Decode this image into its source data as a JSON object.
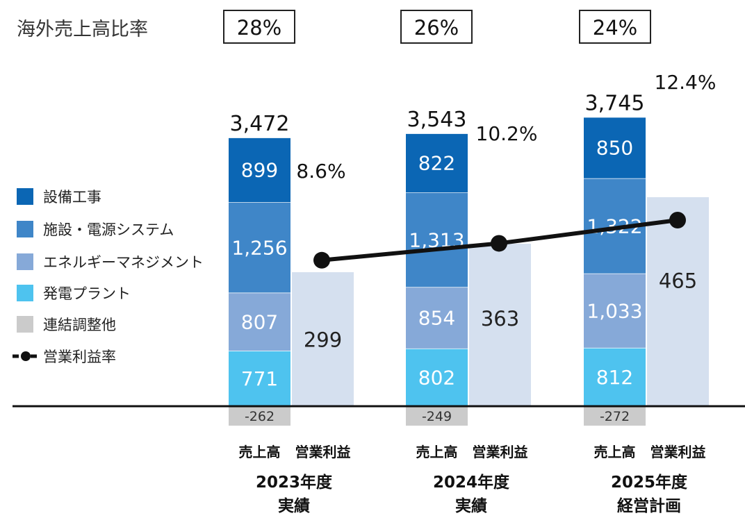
{
  "chart_data": {
    "type": "bar",
    "title": "",
    "overseas_label": "海外売上高比率",
    "overseas_ratios": [
      "28%",
      "26%",
      "24%"
    ],
    "categories": [
      "2023年度",
      "2024年度",
      "2025年度"
    ],
    "category_notes": [
      "実績",
      "実績",
      "経営計画"
    ],
    "bar_labels": {
      "sales": "売上高",
      "profit": "営業利益"
    },
    "sales_series": [
      {
        "name": "設備工事",
        "values": [
          899,
          822,
          850
        ],
        "labels": [
          "899",
          "822",
          "850"
        ],
        "color": "#0b66b4"
      },
      {
        "name": "施設・電源システム",
        "values": [
          1256,
          1313,
          1322
        ],
        "labels": [
          "1,256",
          "1,313",
          "1,322"
        ],
        "color": "#3f86c8"
      },
      {
        "name": "エネルギーマネジメント",
        "values": [
          807,
          854,
          1033
        ],
        "labels": [
          "807",
          "854",
          "1,033"
        ],
        "color": "#86a9d8"
      },
      {
        "name": "発電プラント",
        "values": [
          771,
          802,
          812
        ],
        "labels": [
          "771",
          "802",
          "812"
        ],
        "color": "#4ec3ef"
      },
      {
        "name": "連結調整他",
        "values": [
          -262,
          -249,
          -272
        ],
        "labels": [
          "-262",
          "-249",
          "-272"
        ],
        "color": "#cbcbcb"
      }
    ],
    "sales_totals": [
      3472,
      3543,
      3745
    ],
    "sales_total_labels": [
      "3,472",
      "3,543",
      "3,745"
    ],
    "operating_profit": {
      "values": [
        299,
        363,
        465
      ],
      "labels": [
        "299",
        "363",
        "465"
      ],
      "color": "#d5e0ef"
    },
    "operating_margin": {
      "name": "営業利益率",
      "values": [
        8.6,
        10.2,
        12.4
      ],
      "labels": [
        "8.6%",
        "10.2%",
        "12.4%"
      ],
      "color": "#111111"
    },
    "legend": [
      "設備工事",
      "施設・電源システム",
      "エネルギーマネジメント",
      "発電プラント",
      "連結調整他",
      "営業利益率"
    ],
    "legend_position": "left",
    "grid": false
  }
}
